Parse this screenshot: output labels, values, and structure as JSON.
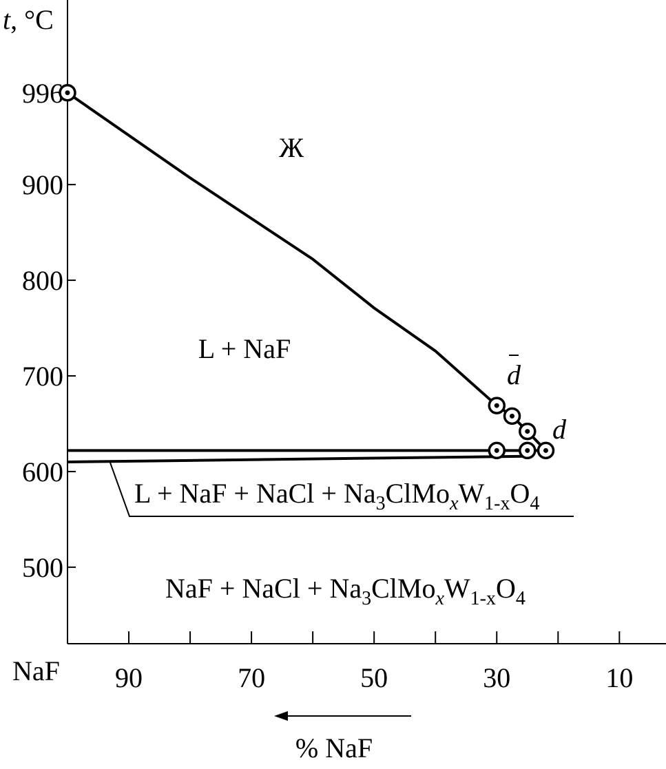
{
  "chart_data": {
    "type": "line",
    "y_label": [
      "t",
      ", °C"
    ],
    "x_end_label": "NaF",
    "x_label": "% NaF",
    "xlim": [
      100,
      2.4
    ],
    "ylim": [
      420,
      1093
    ],
    "xticks": [
      90,
      70,
      50,
      30,
      10
    ],
    "xminorticks": [
      80,
      60,
      40,
      20
    ],
    "yticks": [
      500,
      600,
      700,
      800,
      900,
      996
    ],
    "color": "#000000",
    "series": [
      {
        "x": [
          100,
          80,
          60,
          50,
          40,
          30
        ],
        "values": [
          996,
          907,
          822,
          771,
          726,
          669
        ]
      },
      {
        "x": [
          100,
          30,
          25,
          22
        ],
        "values": [
          622,
          622,
          622,
          622
        ]
      },
      {
        "x": [
          100,
          25
        ],
        "values": [
          610,
          616
        ]
      },
      {
        "x": [
          30,
          27.5,
          25,
          22
        ],
        "values": [
          669,
          658,
          642,
          622
        ]
      }
    ],
    "points": {
      "x": [
        100,
        30,
        27.5,
        25,
        22,
        25,
        30
      ],
      "values": [
        996,
        669,
        658,
        642,
        622,
        622,
        622
      ]
    },
    "annotations": {
      "liquid": "Ж",
      "l_naf": "L + NaF",
      "d_bar": "d",
      "d": "d",
      "eutectic": [
        "L + NaF + NaCl + Na",
        "3",
        "ClMo",
        "x",
        "W",
        "1-x",
        "O",
        "4"
      ],
      "solid": [
        "NaF + NaCl + Na",
        "3",
        "ClMo",
        "x",
        "W",
        "1-x",
        "O",
        "4"
      ]
    }
  }
}
